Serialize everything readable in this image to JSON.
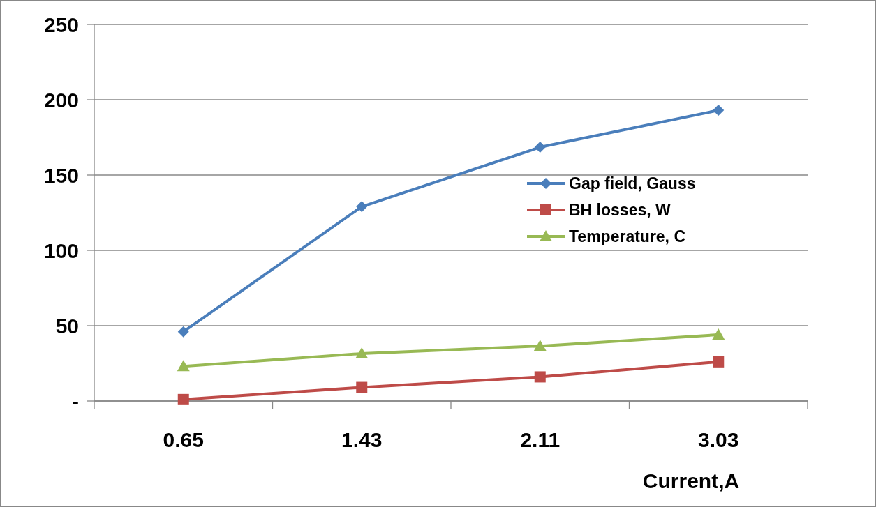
{
  "chart_data": {
    "type": "line",
    "xlabel": "Current,A",
    "categories": [
      "0.65",
      "1.43",
      "2.11",
      "3.03"
    ],
    "series": [
      {
        "name": "Gap field, Gauss",
        "color": "#4a7ebb",
        "marker": "diamond",
        "values": [
          46,
          129,
          168.5,
          193
        ]
      },
      {
        "name": "BH losses, W",
        "color": "#be4b48",
        "marker": "square",
        "values": [
          1,
          9,
          16,
          26
        ]
      },
      {
        "name": "Temperature, C",
        "color": "#98b954",
        "marker": "triangle",
        "values": [
          23,
          31.5,
          36.5,
          44
        ]
      }
    ],
    "ylim": [
      0,
      250
    ],
    "yticks": [
      {
        "value": 0,
        "label": "-"
      },
      50,
      100,
      150,
      200,
      250
    ],
    "grid": "y",
    "legend": "right"
  }
}
